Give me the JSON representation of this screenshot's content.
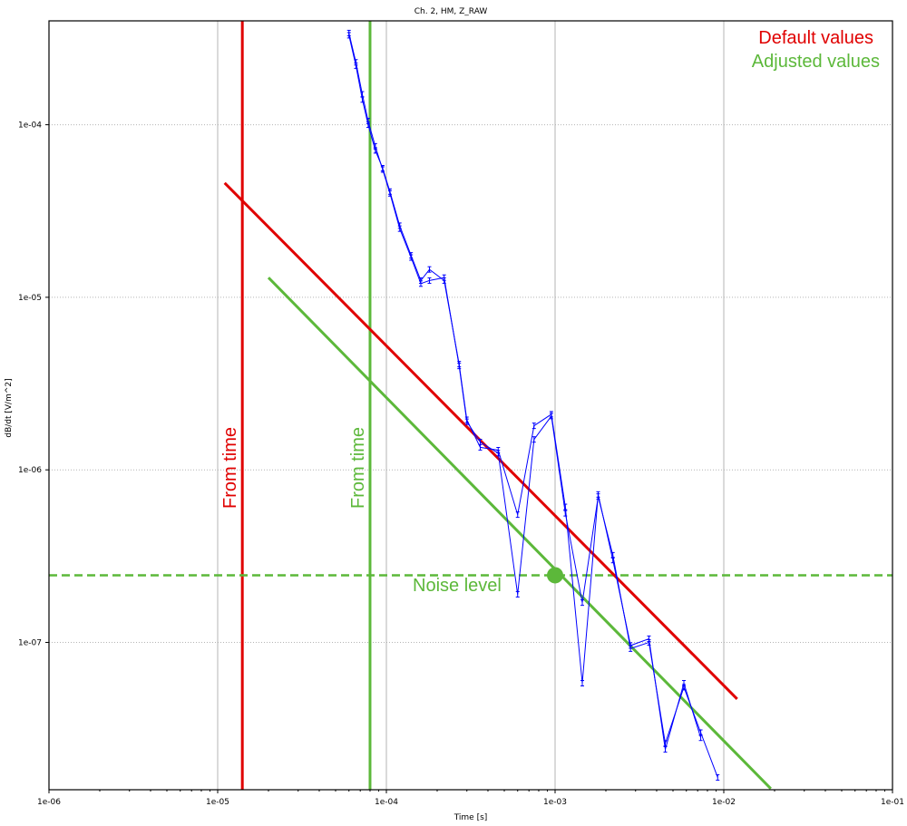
{
  "chart_data": {
    "type": "line",
    "title": "Ch. 2, HM, Z_RAW",
    "xlabel": "Time [s]",
    "ylabel": "dB/dt [V/m^2]",
    "x_scale": "log",
    "y_scale": "log",
    "xlim": [
      1e-06,
      0.1
    ],
    "ylim": [
      1.4e-08,
      0.0004
    ],
    "grid": true,
    "x_ticks": [
      1e-06,
      1e-05,
      0.0001,
      0.001,
      0.01,
      0.1
    ],
    "x_tick_labels": [
      "1e-06",
      "1e-05",
      "1e-04",
      "1e-03",
      "1e-02",
      "1e-01"
    ],
    "y_ticks": [
      1e-07,
      1e-06,
      1e-05,
      0.0001
    ],
    "y_tick_labels": [
      "1e-07",
      "1e-06",
      "1e-05",
      "1e-04"
    ],
    "series": [
      {
        "color": "#0000ff",
        "x": [
          6e-05,
          6.6e-05,
          7.2e-05,
          7.8e-05,
          8.6e-05,
          9.5e-05,
          0.000105,
          0.00012,
          0.00014,
          0.00016,
          0.00018,
          0.00022,
          0.00027,
          0.0003,
          0.00036,
          0.00046,
          0.0006,
          0.00075,
          0.00095,
          0.00115,
          0.00145,
          0.0018,
          0.0022,
          0.0028,
          0.0036,
          0.0045,
          0.0058,
          0.0073,
          0.0092
        ],
        "y": [
          0.00034,
          0.00023,
          0.00015,
          0.000105,
          7.5e-05,
          5.5e-05,
          4e-05,
          2.5e-05,
          1.7e-05,
          1.2e-05,
          1.25e-05,
          1.3e-05,
          4e-06,
          1.9e-06,
          1.45e-06,
          1.25e-06,
          1.9e-07,
          1.5e-06,
          2.05e-06,
          5.6e-07,
          1.7e-07,
          7e-07,
          3.2e-07,
          9.2e-08,
          1e-07,
          2.6e-08,
          5.5e-08,
          3e-08,
          1.65e-08
        ]
      },
      {
        "color": "#0000ff",
        "x": [
          6e-05,
          6.6e-05,
          7.2e-05,
          7.8e-05,
          8.6e-05,
          9.5e-05,
          0.000105,
          0.00012,
          0.00014,
          0.00016,
          0.00018,
          0.00022,
          0.00027,
          0.0003,
          0.00036,
          0.00046,
          0.0006,
          0.00075,
          0.00095,
          0.00115,
          0.00145,
          0.0018,
          0.0022,
          0.0028,
          0.0036,
          0.0045,
          0.0058,
          0.0073
        ],
        "y": [
          0.00033,
          0.00022,
          0.00014,
          0.0001,
          7.1e-05,
          5.6e-05,
          4.1e-05,
          2.6e-05,
          1.75e-05,
          1.25e-05,
          1.45e-05,
          1.25e-05,
          4.1e-06,
          1.95e-06,
          1.35e-06,
          1.3e-06,
          5.5e-07,
          1.8e-06,
          2.1e-06,
          6.1e-07,
          5.8e-08,
          7.2e-07,
          3e-07,
          9.6e-08,
          1.05e-07,
          2.4e-08,
          5.8e-08,
          2.8e-08
        ]
      }
    ],
    "reference_lines": {
      "default_from_time": {
        "x": 1.4e-05,
        "color": "#e00000"
      },
      "adjusted_from_time": {
        "x": 8e-05,
        "color": "#5cb83a"
      },
      "noise_level": {
        "y": 2.45e-07,
        "color": "#5cb83a",
        "dash": true
      },
      "default_decay": {
        "x": [
          1.1e-05,
          0.012
        ],
        "y": [
          4.6e-05,
          4.7e-08
        ],
        "color": "#e00000"
      },
      "adjusted_decay": {
        "x": [
          2e-05,
          0.019
        ],
        "y": [
          1.3e-05,
          1.42e-08
        ],
        "color": "#5cb83a"
      },
      "noise_point": {
        "x": 0.001,
        "y": 2.45e-07,
        "color": "#5cb83a"
      }
    },
    "annotations": {
      "legend_default": "Default values",
      "legend_adjusted": "Adjusted values",
      "from_time_default": "From time",
      "from_time_adjusted": "From time",
      "noise_level": "Noise level"
    },
    "legend_position": "top-right"
  }
}
